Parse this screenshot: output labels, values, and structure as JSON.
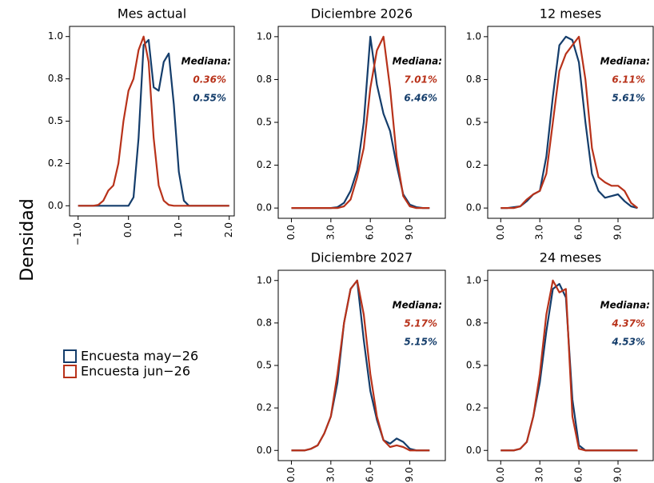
{
  "ylabel": "Densidad",
  "chart_data": [
    {
      "type": "line",
      "title": "Mes actual",
      "x": [
        -1.0,
        -0.9,
        -0.8,
        -0.7,
        -0.6,
        -0.5,
        -0.4,
        -0.3,
        -0.2,
        -0.1,
        0.0,
        0.1,
        0.2,
        0.3,
        0.4,
        0.5,
        0.6,
        0.7,
        0.8,
        0.9,
        1.0,
        1.1,
        1.2,
        1.3,
        1.4,
        1.5,
        1.6,
        1.7,
        1.8,
        1.9,
        2.0
      ],
      "series": [
        {
          "name": "Encuesta may−26",
          "color": "#143d6b",
          "median_label": "0.55%",
          "values": [
            0,
            0,
            0,
            0,
            0,
            0,
            0,
            0,
            0,
            0,
            0,
            0.05,
            0.4,
            0.95,
            0.98,
            0.7,
            0.68,
            0.85,
            0.9,
            0.6,
            0.2,
            0.03,
            0,
            0,
            0,
            0,
            0,
            0,
            0,
            0,
            0
          ]
        },
        {
          "name": "Encuesta jun−26",
          "color": "#b8321a",
          "median_label": "0.36%",
          "values": [
            0,
            0,
            0,
            0,
            0.005,
            0.03,
            0.09,
            0.12,
            0.25,
            0.5,
            0.68,
            0.75,
            0.92,
            1.0,
            0.85,
            0.4,
            0.12,
            0.03,
            0.005,
            0,
            0,
            0,
            0,
            0,
            0,
            0,
            0,
            0,
            0,
            0,
            0
          ]
        }
      ],
      "annotation": "Mediana:",
      "xlim": [
        -1.17,
        2.1
      ],
      "ylim": [
        -0.06,
        1.06
      ],
      "xticks": [
        {
          "value": -1,
          "label": "−1.0"
        },
        {
          "value": 0,
          "label": "0.0"
        },
        {
          "value": 1,
          "label": "1.0"
        },
        {
          "value": 2,
          "label": "2.0"
        }
      ],
      "yticks": [
        {
          "value": 0,
          "label": "0.0"
        },
        {
          "value": 0.25,
          "label": "0.2"
        },
        {
          "value": 0.5,
          "label": "0.5"
        },
        {
          "value": 0.75,
          "label": "0.8"
        },
        {
          "value": 1,
          "label": "1.0"
        }
      ]
    },
    {
      "type": "line",
      "title": "Diciembre 2026",
      "x": [
        0,
        0.5,
        1,
        1.5,
        2,
        2.5,
        3,
        3.5,
        4,
        4.5,
        5,
        5.5,
        6,
        6.5,
        7,
        7.5,
        8,
        8.5,
        9,
        9.5,
        10,
        10.5
      ],
      "series": [
        {
          "name": "Encuesta may−26",
          "color": "#143d6b",
          "median_label": "6.46%",
          "values": [
            0,
            0,
            0,
            0,
            0,
            0,
            0,
            0.005,
            0.03,
            0.1,
            0.22,
            0.5,
            1.0,
            0.72,
            0.55,
            0.45,
            0.25,
            0.08,
            0.02,
            0.005,
            0,
            0
          ]
        },
        {
          "name": "Encuesta jun−26",
          "color": "#b8321a",
          "median_label": "7.01%",
          "values": [
            0,
            0,
            0,
            0,
            0,
            0,
            0,
            0,
            0.01,
            0.05,
            0.18,
            0.35,
            0.7,
            0.92,
            1.0,
            0.7,
            0.3,
            0.07,
            0.01,
            0,
            0,
            0
          ]
        }
      ],
      "annotation": "Mediana:",
      "xlim": [
        -1,
        11.7
      ],
      "ylim": [
        -0.06,
        1.06
      ],
      "xticks": [
        {
          "value": 0,
          "label": "0.0"
        },
        {
          "value": 3,
          "label": "3.0"
        },
        {
          "value": 6,
          "label": "6.0"
        },
        {
          "value": 9,
          "label": "9.0"
        }
      ],
      "yticks": [
        {
          "value": 0,
          "label": "0.0"
        },
        {
          "value": 0.25,
          "label": "0.2"
        },
        {
          "value": 0.5,
          "label": "0.5"
        },
        {
          "value": 0.75,
          "label": "0.8"
        },
        {
          "value": 1,
          "label": "1.0"
        }
      ]
    },
    {
      "type": "line",
      "title": "12 meses",
      "x": [
        0,
        0.5,
        1,
        1.5,
        2,
        2.5,
        3,
        3.5,
        4,
        4.5,
        5,
        5.5,
        6,
        6.5,
        7,
        7.5,
        8,
        8.5,
        9,
        9.5,
        10,
        10.5
      ],
      "series": [
        {
          "name": "Encuesta may−26",
          "color": "#143d6b",
          "median_label": "5.61%",
          "values": [
            0,
            0,
            0.005,
            0.01,
            0.04,
            0.08,
            0.1,
            0.3,
            0.65,
            0.95,
            1.0,
            0.98,
            0.85,
            0.5,
            0.2,
            0.1,
            0.06,
            0.07,
            0.08,
            0.04,
            0.01,
            0
          ]
        },
        {
          "name": "Encuesta jun−26",
          "color": "#b8321a",
          "median_label": "6.11%",
          "values": [
            0,
            0,
            0,
            0.01,
            0.05,
            0.08,
            0.1,
            0.2,
            0.5,
            0.8,
            0.9,
            0.95,
            1.0,
            0.75,
            0.35,
            0.18,
            0.15,
            0.13,
            0.13,
            0.1,
            0.03,
            0
          ]
        }
      ],
      "annotation": "Mediana:",
      "xlim": [
        -1,
        11.7
      ],
      "ylim": [
        -0.06,
        1.06
      ],
      "xticks": [
        {
          "value": 0,
          "label": "0.0"
        },
        {
          "value": 3,
          "label": "3.0"
        },
        {
          "value": 6,
          "label": "6.0"
        },
        {
          "value": 9,
          "label": "9.0"
        }
      ],
      "yticks": [
        {
          "value": 0,
          "label": "0.0"
        },
        {
          "value": 0.25,
          "label": "0.2"
        },
        {
          "value": 0.5,
          "label": "0.5"
        },
        {
          "value": 0.75,
          "label": "0.8"
        },
        {
          "value": 1,
          "label": "1.0"
        }
      ]
    },
    {
      "type": "line",
      "title": "Diciembre 2027",
      "x": [
        0,
        0.5,
        1,
        1.5,
        2,
        2.5,
        3,
        3.5,
        4,
        4.5,
        5,
        5.5,
        6,
        6.5,
        7,
        7.5,
        8,
        8.5,
        9,
        9.5,
        10,
        10.5
      ],
      "series": [
        {
          "name": "Encuesta may−26",
          "color": "#143d6b",
          "median_label": "5.15%",
          "values": [
            0,
            0,
            0,
            0.01,
            0.03,
            0.1,
            0.2,
            0.4,
            0.75,
            0.95,
            1.0,
            0.65,
            0.35,
            0.18,
            0.06,
            0.04,
            0.07,
            0.05,
            0.01,
            0,
            0,
            0
          ]
        },
        {
          "name": "Encuesta jun−26",
          "color": "#b8321a",
          "median_label": "5.17%",
          "values": [
            0,
            0,
            0,
            0.01,
            0.03,
            0.1,
            0.2,
            0.45,
            0.75,
            0.95,
            1.0,
            0.8,
            0.45,
            0.2,
            0.06,
            0.02,
            0.03,
            0.02,
            0,
            0,
            0,
            0
          ]
        }
      ],
      "annotation": "Mediana:",
      "xlim": [
        -1,
        11.7
      ],
      "ylim": [
        -0.06,
        1.06
      ],
      "xticks": [
        {
          "value": 0,
          "label": "0.0"
        },
        {
          "value": 3,
          "label": "3.0"
        },
        {
          "value": 6,
          "label": "6.0"
        },
        {
          "value": 9,
          "label": "9.0"
        }
      ],
      "yticks": [
        {
          "value": 0,
          "label": "0.0"
        },
        {
          "value": 0.25,
          "label": "0.2"
        },
        {
          "value": 0.5,
          "label": "0.5"
        },
        {
          "value": 0.75,
          "label": "0.8"
        },
        {
          "value": 1,
          "label": "1.0"
        }
      ]
    },
    {
      "type": "line",
      "title": "24 meses",
      "x": [
        0,
        0.5,
        1,
        1.5,
        2,
        2.5,
        3,
        3.5,
        4,
        4.5,
        5,
        5.5,
        6,
        6.5,
        7,
        7.5,
        8,
        8.5,
        9,
        9.5,
        10,
        10.5
      ],
      "series": [
        {
          "name": "Encuesta may−26",
          "color": "#143d6b",
          "median_label": "4.53%",
          "values": [
            0,
            0,
            0,
            0.01,
            0.05,
            0.2,
            0.4,
            0.7,
            0.95,
            0.98,
            0.9,
            0.3,
            0.03,
            0,
            0,
            0,
            0,
            0,
            0,
            0,
            0,
            0
          ]
        },
        {
          "name": "Encuesta jun−26",
          "color": "#b8321a",
          "median_label": "4.37%",
          "values": [
            0,
            0,
            0,
            0.01,
            0.05,
            0.2,
            0.45,
            0.8,
            1.0,
            0.93,
            0.95,
            0.2,
            0.01,
            0,
            0,
            0,
            0,
            0,
            0,
            0,
            0,
            0
          ]
        }
      ],
      "annotation": "Mediana:",
      "xlim": [
        -1,
        11.7
      ],
      "ylim": [
        -0.06,
        1.06
      ],
      "xticks": [
        {
          "value": 0,
          "label": "0.0"
        },
        {
          "value": 3,
          "label": "3.0"
        },
        {
          "value": 6,
          "label": "6.0"
        },
        {
          "value": 9,
          "label": "9.0"
        }
      ],
      "yticks": [
        {
          "value": 0,
          "label": "0.0"
        },
        {
          "value": 0.25,
          "label": "0.2"
        },
        {
          "value": 0.5,
          "label": "0.5"
        },
        {
          "value": 0.75,
          "label": "0.8"
        },
        {
          "value": 1,
          "label": "1.0"
        }
      ]
    }
  ]
}
